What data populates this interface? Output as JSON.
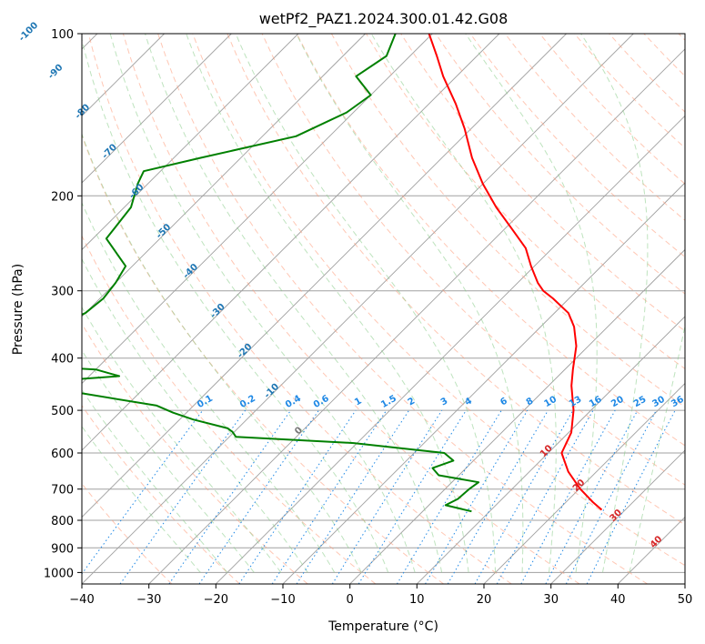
{
  "chart_data": {
    "type": "line",
    "subtype": "skew-T log-P diagram",
    "title": "wetPf2_PAZ1.2024.300.01.42.G08",
    "xlabel": "Temperature (°C)",
    "ylabel": "Pressure (hPa)",
    "xlim": [
      -40,
      50
    ],
    "ylim": [
      1050,
      100
    ],
    "yscale": "log",
    "grid": true,
    "x_ticks": [
      "−40",
      "−30",
      "−20",
      "−10",
      "0",
      "10",
      "20",
      "30",
      "40",
      "50"
    ],
    "y_ticks": [
      "100",
      "200",
      "300",
      "400",
      "500",
      "600",
      "700",
      "800",
      "900",
      "1000"
    ],
    "colors": {
      "temperature": "#ff0000",
      "dewpoint": "#008000",
      "isotherm": "#a0a0a0",
      "dry_adiabat": "#ff9977",
      "moist_adiabat": "#88cc88",
      "mixing_ratio": "#1e88e5",
      "dry_adiabat_label": "#d62728",
      "moist_adiabat_label": "#1f77b4",
      "zero_label": "#777777"
    },
    "dry_adiabat_labels": [
      "10",
      "20",
      "30",
      "40"
    ],
    "moist_adiabat_labels": [
      "-100",
      "-90",
      "-80",
      "-70",
      "-60",
      "-50",
      "-40",
      "-30",
      "-20",
      "-10",
      "0"
    ],
    "mixing_ratio_labels": [
      "0.1",
      "0.2",
      "0.4",
      "0.6",
      "1",
      "1.5",
      "2",
      "3",
      "4",
      "6",
      "8",
      "10",
      "13",
      "16",
      "20",
      "25",
      "30",
      "36"
    ],
    "series": [
      {
        "key": "temperature",
        "points": [
          [
            765,
            26.5
          ],
          [
            740,
            24.0
          ],
          [
            700,
            20.2
          ],
          [
            650,
            15.8
          ],
          [
            600,
            12.0
          ],
          [
            550,
            10.4
          ],
          [
            500,
            7.4
          ],
          [
            450,
            3.4
          ],
          [
            420,
            1.2
          ],
          [
            380,
            -1.8
          ],
          [
            350,
            -5.0
          ],
          [
            330,
            -7.9
          ],
          [
            310,
            -12.4
          ],
          [
            300,
            -15.0
          ],
          [
            290,
            -17.0
          ],
          [
            270,
            -20.5
          ],
          [
            250,
            -24.0
          ],
          [
            230,
            -29.0
          ],
          [
            210,
            -34.5
          ],
          [
            190,
            -40.0
          ],
          [
            170,
            -45.5
          ],
          [
            150,
            -51.0
          ],
          [
            135,
            -56.0
          ],
          [
            120,
            -62.0
          ],
          [
            110,
            -66.0
          ],
          [
            100,
            -70.5
          ]
        ]
      },
      {
        "key": "dewpoint",
        "points": [
          [
            770,
            7.3
          ],
          [
            750,
            2.5
          ],
          [
            730,
            3.4
          ],
          [
            700,
            3.6
          ],
          [
            680,
            4.0
          ],
          [
            660,
            -3.0
          ],
          [
            640,
            -5.0
          ],
          [
            620,
            -3.0
          ],
          [
            600,
            -5.5
          ],
          [
            575,
            -20.5
          ],
          [
            560,
            -39.0
          ],
          [
            548,
            -40.3
          ],
          [
            540,
            -41.5
          ],
          [
            520,
            -48.0
          ],
          [
            505,
            -52.0
          ],
          [
            490,
            -55.5
          ],
          [
            465,
            -68.5
          ],
          [
            455,
            -76.5
          ],
          [
            445,
            -78.5
          ],
          [
            432,
            -65.5
          ],
          [
            420,
            -70.0
          ],
          [
            412,
            -82.5
          ],
          [
            390,
            -81.0
          ],
          [
            370,
            -82.5
          ],
          [
            350,
            -82.5
          ],
          [
            330,
            -80.0
          ],
          [
            310,
            -79.5
          ],
          [
            290,
            -80.0
          ],
          [
            270,
            -81.0
          ],
          [
            240,
            -88.0
          ],
          [
            210,
            -89.0
          ],
          [
            190,
            -91.5
          ],
          [
            180,
            -92.5
          ],
          [
            170,
            -86.0
          ],
          [
            155,
            -75.0
          ],
          [
            140,
            -71.0
          ],
          [
            130,
            -70.0
          ],
          [
            120,
            -75.0
          ],
          [
            110,
            -73.5
          ],
          [
            100,
            -75.5
          ]
        ]
      }
    ]
  }
}
